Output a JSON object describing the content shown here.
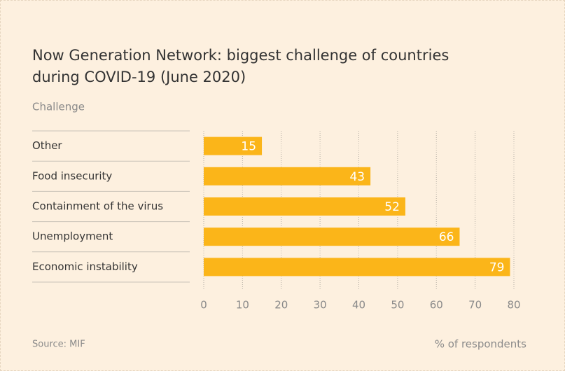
{
  "chart_data": {
    "type": "bar",
    "title": "Now Generation Network: biggest challenge of countries during COVID-19 (June 2020)",
    "y_label": "Challenge",
    "x_label": "% of respondents",
    "source": "Source: MIF",
    "categories": [
      "Other",
      "Food insecurity",
      "Containment of the virus",
      "Unemployment",
      "Economic instability"
    ],
    "values": [
      15,
      43,
      52,
      66,
      79
    ],
    "color": "#fbb519",
    "xlim": [
      0,
      80
    ],
    "xticks": [
      0,
      10,
      20,
      30,
      40,
      50,
      60,
      70,
      80
    ],
    "grid": true
  }
}
